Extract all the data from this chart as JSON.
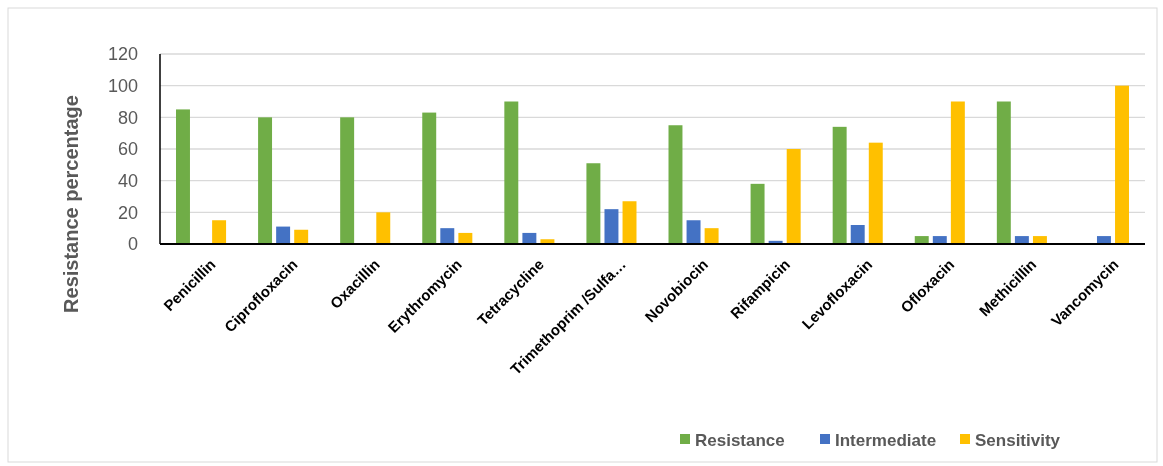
{
  "chart_data": {
    "type": "bar",
    "ylabel": "Resistance percentage",
    "categories": [
      "Penicillin",
      "Ciprofloxacin",
      "Oxacillin",
      "Erythromycin",
      "Tetracycline",
      "Trimethoprim /Sulfa…",
      "Novobiocin",
      "Rifampicin",
      "Levofloxacin",
      "Ofloxacin",
      "Methicillin",
      "Vancomycin"
    ],
    "series": [
      {
        "name": "Resistance",
        "color": "#70ad47",
        "values": [
          85,
          80,
          80,
          83,
          90,
          51,
          75,
          38,
          74,
          5,
          90,
          0
        ]
      },
      {
        "name": "Intermediate",
        "color": "#4472c4",
        "values": [
          0,
          11,
          0,
          10,
          7,
          22,
          15,
          2,
          12,
          5,
          5,
          5
        ]
      },
      {
        "name": "Sensitivity",
        "color": "#ffc000",
        "values": [
          15,
          9,
          20,
          7,
          3,
          27,
          10,
          60,
          64,
          90,
          5,
          100
        ]
      }
    ],
    "ylim": [
      0,
      120
    ],
    "yticks": [
      0,
      20,
      40,
      60,
      80,
      100,
      120
    ],
    "grid": "y",
    "legend": "bottom right"
  }
}
